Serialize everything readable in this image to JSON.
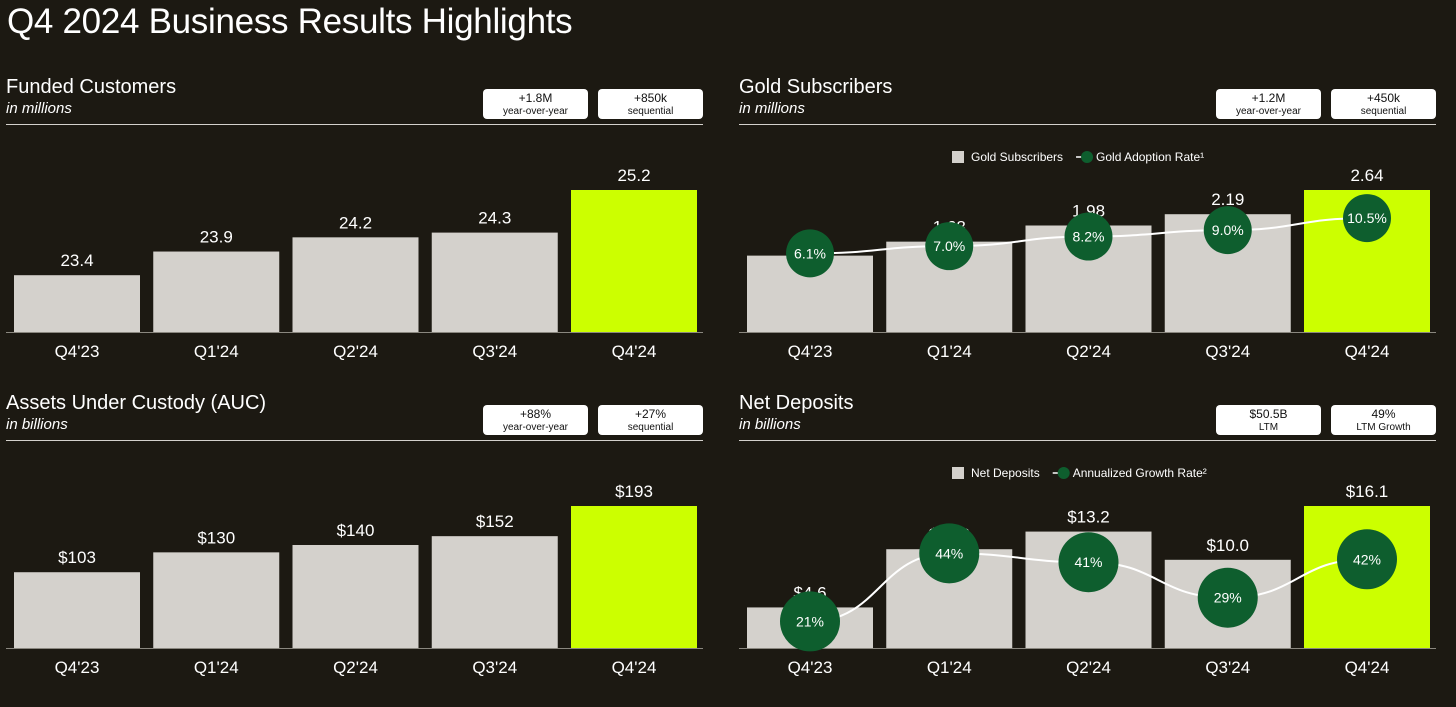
{
  "title": "Q4 2024 Business Results Highlights",
  "colors": {
    "background": "#1c1912",
    "bar": "#d4d1cc",
    "highlight": "#ccff00",
    "rate": "#0e5e2e",
    "text": "#ffffff"
  },
  "panels": [
    {
      "title": "Funded Customers",
      "subtitle": "in millions",
      "badges": [
        {
          "value": "+1.8M",
          "label": "year-over-year"
        },
        {
          "value": "+850k",
          "label": "sequential"
        }
      ]
    },
    {
      "title": "Gold Subscribers",
      "subtitle": "in millions",
      "badges": [
        {
          "value": "+1.2M",
          "label": "year-over-year"
        },
        {
          "value": "+450k",
          "label": "sequential"
        }
      ]
    },
    {
      "title": "Assets Under Custody (AUC)",
      "subtitle": "in billions",
      "badges": [
        {
          "value": "+88%",
          "label": "year-over-year"
        },
        {
          "value": "+27%",
          "label": "sequential"
        }
      ]
    },
    {
      "title": "Net Deposits",
      "subtitle": "in billions",
      "badges": [
        {
          "value": "$50.5B",
          "label": "LTM"
        },
        {
          "value": "49%",
          "label": "LTM Growth"
        }
      ]
    }
  ],
  "chart_data": [
    {
      "type": "bar",
      "title": "Funded Customers",
      "categories": [
        "Q4'23",
        "Q1'24",
        "Q2'24",
        "Q3'24",
        "Q4'24"
      ],
      "values": [
        23.4,
        23.9,
        24.2,
        24.3,
        25.2
      ],
      "labels": [
        "23.4",
        "23.9",
        "24.2",
        "24.3",
        "25.2"
      ],
      "highlight_index": 4,
      "ylim": [
        22.2,
        25.2
      ],
      "grid": false
    },
    {
      "type": "bar",
      "title": "Gold Subscribers",
      "categories": [
        "Q4'23",
        "Q1'24",
        "Q2'24",
        "Q3'24",
        "Q4'24"
      ],
      "values": [
        1.42,
        1.68,
        1.98,
        2.19,
        2.64
      ],
      "labels": [
        "1.42",
        "1.68",
        "1.98",
        "2.19",
        "2.64"
      ],
      "highlight_index": 4,
      "ylim": [
        0,
        2.64
      ],
      "legend": [
        "Gold Subscribers",
        "Gold Adoption Rate¹"
      ],
      "legend_position": "top-center",
      "line_series": {
        "name": "Gold Adoption Rate¹",
        "values": [
          6.1,
          7.0,
          8.2,
          9.0,
          10.5
        ],
        "labels": [
          "6.1%",
          "7.0%",
          "8.2%",
          "9.0%",
          "10.5%"
        ],
        "ylim": [
          -3.7,
          14.0
        ]
      },
      "grid": false
    },
    {
      "type": "bar",
      "title": "Assets Under Custody (AUC)",
      "categories": [
        "Q4'23",
        "Q1'24",
        "Q2'24",
        "Q3'24",
        "Q4'24"
      ],
      "values": [
        103,
        130,
        140,
        152,
        193
      ],
      "labels": [
        "$103",
        "$130",
        "$140",
        "$152",
        "$193"
      ],
      "highlight_index": 4,
      "ylim": [
        0,
        193
      ],
      "grid": false
    },
    {
      "type": "bar",
      "title": "Net Deposits",
      "categories": [
        "Q4'23",
        "Q1'24",
        "Q2'24",
        "Q3'24",
        "Q4'24"
      ],
      "values": [
        4.6,
        11.2,
        13.2,
        10.0,
        16.1
      ],
      "labels": [
        "$4.6",
        "$11.2",
        "$13.2",
        "$10.0",
        "$16.1"
      ],
      "highlight_index": 4,
      "ylim": [
        0,
        16.1
      ],
      "legend": [
        "Net Deposits",
        "Annualized Growth Rate²"
      ],
      "legend_position": "top-center",
      "line_series": {
        "name": "Annualized Growth Rate²",
        "values": [
          21,
          44,
          41,
          29,
          42
        ],
        "labels": [
          "21%",
          "44%",
          "41%",
          "29%",
          "42%"
        ],
        "ylim": [
          12,
          60
        ]
      },
      "grid": false
    }
  ]
}
